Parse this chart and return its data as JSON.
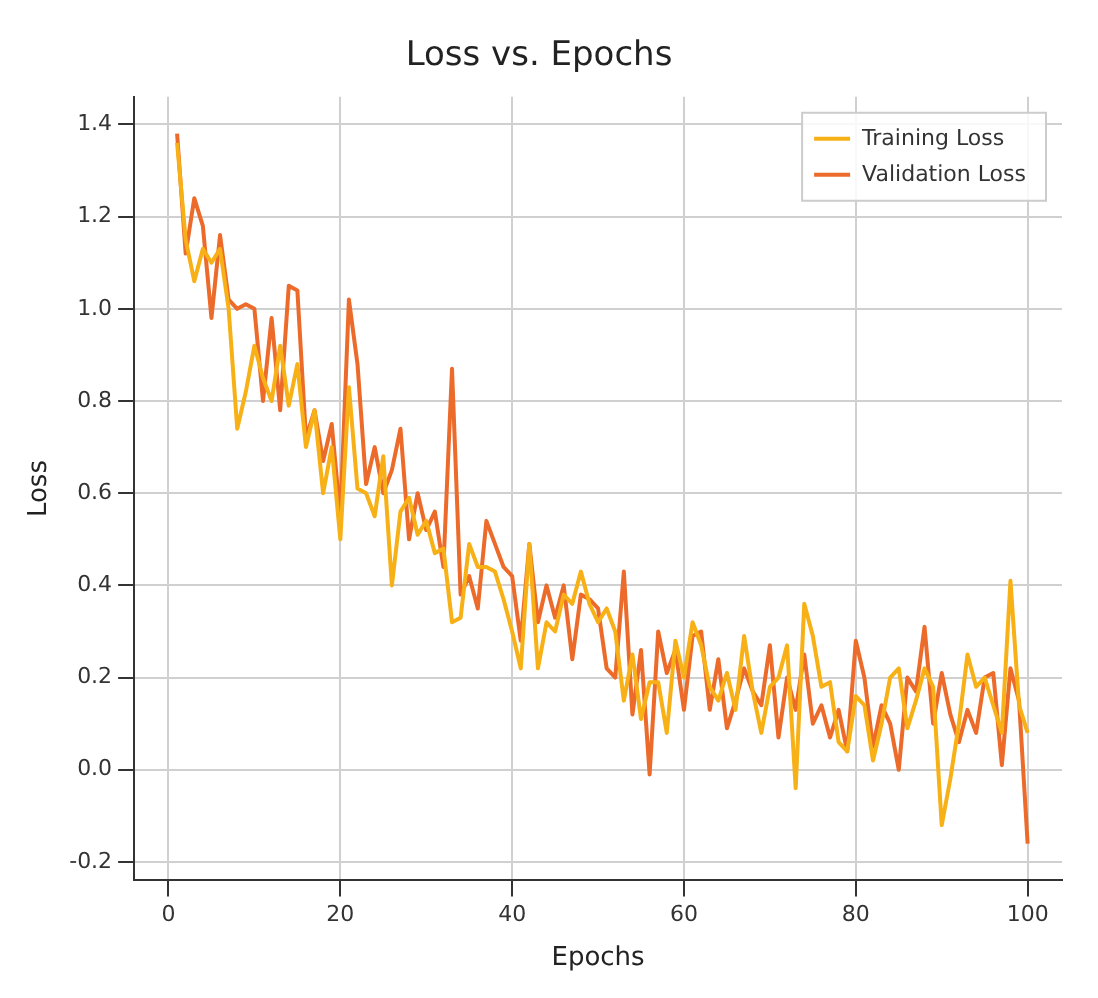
{
  "chart_data": {
    "type": "line",
    "title": "Loss vs. Epochs",
    "xlabel": "Epochs",
    "ylabel": "Loss",
    "x": [
      1,
      2,
      3,
      4,
      5,
      6,
      7,
      8,
      9,
      10,
      11,
      12,
      13,
      14,
      15,
      16,
      17,
      18,
      19,
      20,
      21,
      22,
      23,
      24,
      25,
      26,
      27,
      28,
      29,
      30,
      31,
      32,
      33,
      34,
      35,
      36,
      37,
      38,
      39,
      40,
      41,
      42,
      43,
      44,
      45,
      46,
      47,
      48,
      49,
      50,
      51,
      52,
      53,
      54,
      55,
      56,
      57,
      58,
      59,
      60,
      61,
      62,
      63,
      64,
      65,
      66,
      67,
      68,
      69,
      70,
      71,
      72,
      73,
      74,
      75,
      76,
      77,
      78,
      79,
      80,
      81,
      82,
      83,
      84,
      85,
      86,
      87,
      88,
      89,
      90,
      91,
      92,
      93,
      94,
      95,
      96,
      97,
      98,
      99,
      100
    ],
    "series": [
      {
        "name": "Training Loss",
        "color": "#f7b016",
        "values": [
          1.36,
          1.15,
          1.06,
          1.13,
          1.1,
          1.13,
          1.0,
          0.74,
          0.82,
          0.92,
          0.85,
          0.8,
          0.92,
          0.79,
          0.88,
          0.7,
          0.78,
          0.6,
          0.7,
          0.5,
          0.83,
          0.61,
          0.6,
          0.55,
          0.68,
          0.4,
          0.56,
          0.59,
          0.51,
          0.54,
          0.47,
          0.48,
          0.32,
          0.33,
          0.49,
          0.44,
          0.44,
          0.43,
          0.37,
          0.3,
          0.22,
          0.49,
          0.22,
          0.32,
          0.3,
          0.38,
          0.36,
          0.43,
          0.36,
          0.32,
          0.35,
          0.3,
          0.15,
          0.25,
          0.11,
          0.19,
          0.19,
          0.08,
          0.28,
          0.2,
          0.32,
          0.27,
          0.18,
          0.15,
          0.21,
          0.13,
          0.29,
          0.17,
          0.08,
          0.18,
          0.2,
          0.27,
          -0.04,
          0.36,
          0.29,
          0.18,
          0.19,
          0.06,
          0.04,
          0.16,
          0.14,
          0.02,
          0.1,
          0.2,
          0.22,
          0.09,
          0.15,
          0.22,
          0.18,
          -0.12,
          -0.02,
          0.1,
          0.25,
          0.18,
          0.2,
          0.14,
          0.08,
          0.41,
          0.14,
          0.08
        ]
      },
      {
        "name": "Validation Loss",
        "color": "#ec6a2a",
        "values": [
          1.38,
          1.12,
          1.24,
          1.18,
          0.98,
          1.16,
          1.02,
          1.0,
          1.01,
          1.0,
          0.8,
          0.98,
          0.78,
          1.05,
          1.04,
          0.72,
          0.78,
          0.67,
          0.75,
          0.55,
          1.02,
          0.88,
          0.62,
          0.7,
          0.6,
          0.65,
          0.74,
          0.5,
          0.6,
          0.52,
          0.56,
          0.44,
          0.87,
          0.38,
          0.42,
          0.35,
          0.54,
          0.49,
          0.44,
          0.42,
          0.28,
          0.49,
          0.32,
          0.4,
          0.33,
          0.4,
          0.24,
          0.38,
          0.37,
          0.35,
          0.22,
          0.2,
          0.43,
          0.12,
          0.26,
          -0.01,
          0.3,
          0.21,
          0.26,
          0.13,
          0.29,
          0.3,
          0.13,
          0.24,
          0.09,
          0.15,
          0.22,
          0.17,
          0.14,
          0.27,
          0.07,
          0.2,
          0.13,
          0.25,
          0.1,
          0.14,
          0.07,
          0.13,
          0.04,
          0.28,
          0.2,
          0.05,
          0.14,
          0.1,
          0.0,
          0.2,
          0.17,
          0.31,
          0.1,
          0.21,
          0.12,
          0.06,
          0.13,
          0.08,
          0.2,
          0.21,
          0.01,
          0.22,
          0.15,
          -0.16
        ]
      }
    ],
    "xlim": [
      -4,
      104
    ],
    "xticks": [
      0,
      20,
      40,
      60,
      80,
      100
    ],
    "ylim": [
      -0.24,
      1.46
    ],
    "yticks": [
      -0.2,
      {
        "value": 0,
        "label": "0.0"
      },
      0.2,
      0.4,
      0.6,
      0.8,
      {
        "value": 1,
        "label": "1.0"
      },
      1.2,
      1.4
    ],
    "grid": true,
    "legend": "top right",
    "marker": "none",
    "line_style": "solid"
  }
}
